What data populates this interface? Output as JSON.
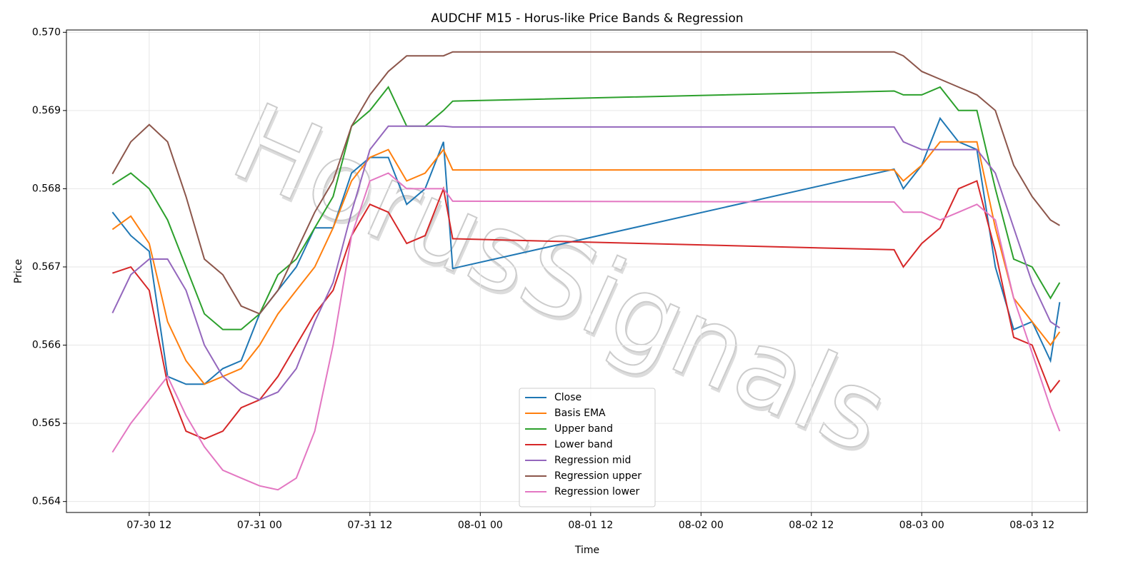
{
  "chart_data": {
    "type": "line",
    "title": "AUDCHF M15 - Horus-like Price Bands & Regression",
    "x_label": "Time",
    "y_label": "Price",
    "annotation": "HorusSignals",
    "x": [
      "07-30 08",
      "07-30 10",
      "07-30 12",
      "07-30 14",
      "07-30 16",
      "07-30 18",
      "07-30 20",
      "07-30 22",
      "07-31 00",
      "07-31 02",
      "07-31 04",
      "07-31 06",
      "07-31 08",
      "07-31 10",
      "07-31 12",
      "07-31 14",
      "07-31 16",
      "07-31 18",
      "07-31 20",
      "07-31 21",
      "08-02 21",
      "08-02 22",
      "08-03 00",
      "08-03 02",
      "08-03 04",
      "08-03 06",
      "08-03 08",
      "08-03 10",
      "08-03 12",
      "08-03 14",
      "08-03 15"
    ],
    "series": [
      {
        "name": "Close",
        "color": "#1f77b4",
        "values": [
          0.5677,
          0.5674,
          0.5672,
          0.5656,
          0.5655,
          0.5655,
          0.5657,
          0.5658,
          0.5664,
          0.5667,
          0.567,
          0.5675,
          0.5675,
          0.5682,
          0.5684,
          0.5684,
          0.5678,
          0.568,
          0.5686,
          0.56698,
          0.56825,
          0.568,
          0.5683,
          0.5689,
          0.5686,
          0.5685,
          0.567,
          0.5662,
          0.5663,
          0.5658,
          0.56655
        ]
      },
      {
        "name": "Basis EMA",
        "color": "#ff7f0e",
        "values": [
          0.56748,
          0.56765,
          0.5673,
          0.5663,
          0.5658,
          0.5655,
          0.5656,
          0.5657,
          0.566,
          0.5664,
          0.5667,
          0.567,
          0.5675,
          0.5681,
          0.5684,
          0.5685,
          0.5681,
          0.5682,
          0.5685,
          0.56824,
          0.56824,
          0.5681,
          0.5683,
          0.5686,
          0.5686,
          0.5686,
          0.5675,
          0.5666,
          0.5663,
          0.566,
          0.56617
        ]
      },
      {
        "name": "Upper band",
        "color": "#2ca02c",
        "values": [
          0.56805,
          0.5682,
          0.568,
          0.5676,
          0.567,
          0.5664,
          0.5662,
          0.5662,
          0.5664,
          0.5669,
          0.5671,
          0.5675,
          0.5679,
          0.5688,
          0.569,
          0.5693,
          0.5688,
          0.5688,
          0.569,
          0.56912,
          0.56925,
          0.5692,
          0.5692,
          0.5693,
          0.569,
          0.569,
          0.568,
          0.5671,
          0.567,
          0.5666,
          0.5668
        ]
      },
      {
        "name": "Lower band",
        "color": "#d62728",
        "values": [
          0.56692,
          0.567,
          0.5667,
          0.5655,
          0.5649,
          0.5648,
          0.5649,
          0.5652,
          0.5653,
          0.5656,
          0.566,
          0.5664,
          0.5667,
          0.5674,
          0.5678,
          0.5677,
          0.5673,
          0.5674,
          0.568,
          0.56736,
          0.56722,
          0.567,
          0.5673,
          0.5675,
          0.568,
          0.5681,
          0.5672,
          0.5661,
          0.566,
          0.5654,
          0.56555
        ]
      },
      {
        "name": "Regression mid",
        "color": "#9467bd",
        "values": [
          0.56641,
          0.5669,
          0.5671,
          0.5671,
          0.5667,
          0.566,
          0.5656,
          0.5654,
          0.5653,
          0.5654,
          0.5657,
          0.5663,
          0.5668,
          0.5677,
          0.5685,
          0.5688,
          0.5688,
          0.5688,
          0.5688,
          0.56879,
          0.56879,
          0.5686,
          0.5685,
          0.5685,
          0.5685,
          0.5685,
          0.5682,
          0.5675,
          0.5668,
          0.5663,
          0.56622
        ]
      },
      {
        "name": "Regression upper",
        "color": "#8c564b",
        "values": [
          0.56819,
          0.5686,
          0.56882,
          0.5686,
          0.5679,
          0.5671,
          0.5669,
          0.5665,
          0.5664,
          0.5667,
          0.5672,
          0.5677,
          0.5681,
          0.5688,
          0.5692,
          0.5695,
          0.5697,
          0.5697,
          0.5697,
          0.56975,
          0.56975,
          0.5697,
          0.5695,
          0.5694,
          0.5693,
          0.5692,
          0.569,
          0.5683,
          0.5679,
          0.5676,
          0.56753
        ]
      },
      {
        "name": "Regression lower",
        "color": "#e377c2",
        "values": [
          0.56463,
          0.565,
          0.5653,
          0.5656,
          0.5651,
          0.5647,
          0.5644,
          0.5643,
          0.5642,
          0.56415,
          0.5643,
          0.5649,
          0.566,
          0.5674,
          0.5681,
          0.5682,
          0.568,
          0.568,
          0.568,
          0.56784,
          0.56783,
          0.5677,
          0.5677,
          0.5676,
          0.5677,
          0.5678,
          0.5676,
          0.5666,
          0.5659,
          0.5652,
          0.5649
        ]
      }
    ],
    "xlim": [
      "07-30 03",
      "08-03 18"
    ],
    "xticks": [
      "07-30 12",
      "07-31 00",
      "07-31 12",
      "08-01 00",
      "08-01 12",
      "08-02 00",
      "08-02 12",
      "08-03 00",
      "08-03 12"
    ],
    "ylim": [
      0.56386,
      0.57003
    ],
    "yticks": [
      0.564,
      0.565,
      0.566,
      0.567,
      0.568,
      0.569,
      {
        "value": 0.57,
        "label": "0.570"
      }
    ],
    "grid": true,
    "legend": "lower center"
  }
}
